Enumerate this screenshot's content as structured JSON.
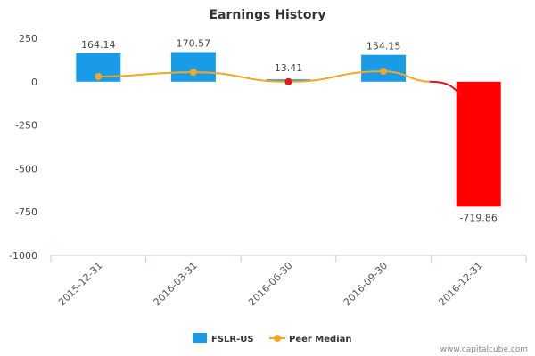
{
  "chart_data": {
    "type": "bar",
    "title": "Earnings History",
    "categories": [
      "2015-12-31",
      "2016-03-31",
      "2016-06-30",
      "2016-09-30",
      "2016-12-31"
    ],
    "ylim": [
      -1000,
      250
    ],
    "yticks": [
      250,
      0,
      -250,
      -500,
      -750,
      -1000
    ],
    "grid": false,
    "legend_position": "bottom",
    "series": [
      {
        "name": "FSLR-US",
        "type": "bar",
        "values": [
          164.14,
          170.57,
          13.41,
          154.15,
          -719.86
        ],
        "labels": [
          "164.14",
          "170.57",
          "13.41",
          "154.15",
          "-719.86"
        ],
        "color": "#1a9be6",
        "negative_color": "#ff0000"
      },
      {
        "name": "Peer Median",
        "type": "line",
        "values": [
          30,
          55,
          0,
          60,
          null
        ],
        "color": "#f5a623",
        "negative_color": "#e8141c"
      }
    ],
    "trailing_segment": {
      "from_value": 0,
      "to_value": -75,
      "color": "#e8141c"
    }
  },
  "credit": "www.capitalcube.com"
}
